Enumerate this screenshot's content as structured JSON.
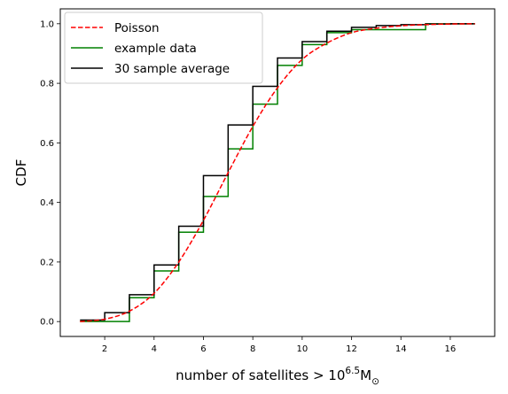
{
  "chart_data": {
    "type": "line",
    "xlabel": "number of satellites > 10",
    "xlabel_sup": "6.5",
    "xlabel_m": "M",
    "xlabel_sub": "⊙",
    "ylabel": "CDF",
    "xlim": [
      0.2,
      17.8
    ],
    "ylim": [
      -0.05,
      1.05
    ],
    "xticks": [
      2,
      4,
      6,
      8,
      10,
      12,
      14,
      16
    ],
    "yticks": [
      0.0,
      0.2,
      0.4,
      0.6,
      0.8,
      1.0
    ],
    "ytick_labels": [
      "0.0",
      "0.2",
      "0.4",
      "0.6",
      "0.8",
      "1.0"
    ],
    "grid": false,
    "legend_position": "top-left",
    "series": [
      {
        "name": "Poisson",
        "style": "dashed",
        "color": "#ff0000",
        "x": [
          1,
          2,
          3,
          4,
          5,
          6,
          7,
          8,
          9,
          10,
          11,
          12,
          13,
          14,
          15,
          16,
          17
        ],
        "y": [
          0.0,
          0.008,
          0.035,
          0.095,
          0.2,
          0.34,
          0.5,
          0.655,
          0.785,
          0.88,
          0.935,
          0.97,
          0.985,
          0.993,
          0.997,
          0.999,
          1.0
        ]
      },
      {
        "name": "example data",
        "style": "step",
        "color": "#008000",
        "x": [
          1,
          3,
          4,
          5,
          6,
          7,
          8,
          9,
          10,
          11,
          12,
          13,
          15,
          17
        ],
        "y": [
          0.0,
          0.08,
          0.17,
          0.3,
          0.42,
          0.58,
          0.73,
          0.86,
          0.93,
          0.97,
          0.98,
          0.98,
          1.0,
          1.0
        ]
      },
      {
        "name": "30 sample average",
        "style": "step",
        "color": "#000000",
        "x": [
          1,
          2,
          3,
          4,
          5,
          6,
          7,
          8,
          9,
          10,
          11,
          12,
          13,
          14,
          15,
          16,
          17
        ],
        "y": [
          0.005,
          0.03,
          0.09,
          0.19,
          0.32,
          0.49,
          0.66,
          0.79,
          0.885,
          0.94,
          0.975,
          0.988,
          0.994,
          0.997,
          0.999,
          1.0,
          1.0
        ]
      }
    ]
  }
}
